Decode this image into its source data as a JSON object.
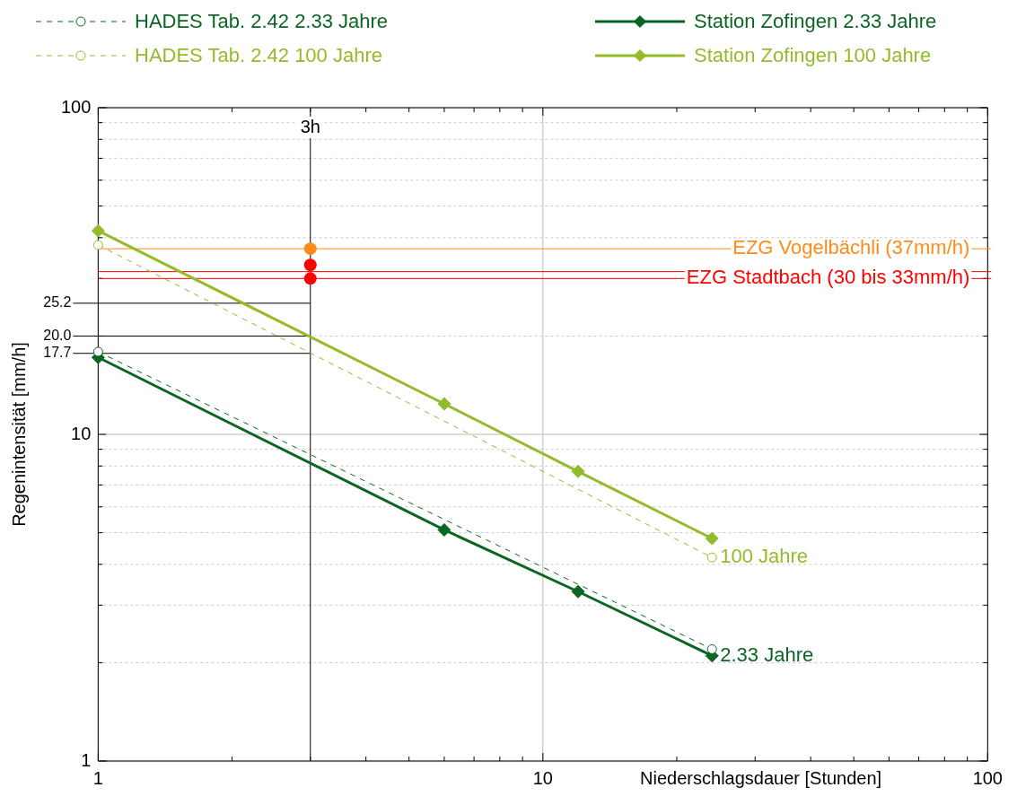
{
  "chart_data": {
    "type": "line",
    "xlabel": "Niederschlagsdauer [Stunden]",
    "ylabel": "Regenintensität [mm/h]",
    "log": "xy",
    "grid": true,
    "legend": "top",
    "xlim": [
      1,
      100
    ],
    "xticks": [
      1,
      {
        "value": 2,
        "label": null
      },
      {
        "value": 3,
        "label": null
      },
      {
        "value": 4,
        "label": null
      },
      {
        "value": 5,
        "label": null
      },
      {
        "value": 6,
        "label": null
      },
      {
        "value": 7,
        "label": null
      },
      {
        "value": 8,
        "label": null
      },
      {
        "value": 9,
        "label": null
      },
      10,
      {
        "value": 20,
        "label": null
      },
      {
        "value": 30,
        "label": null
      },
      {
        "value": 40,
        "label": null
      },
      {
        "value": 50,
        "label": null
      },
      {
        "value": 60,
        "label": null
      },
      {
        "value": 70,
        "label": null
      },
      {
        "value": 80,
        "label": null
      },
      {
        "value": 90,
        "label": null
      },
      100
    ],
    "ylim": [
      1,
      100
    ],
    "yticks": [
      1,
      {
        "value": 2,
        "label": null
      },
      {
        "value": 3,
        "label": null
      },
      {
        "value": 4,
        "label": null
      },
      {
        "value": 5,
        "label": null
      },
      {
        "value": 6,
        "label": null
      },
      {
        "value": 7,
        "label": null
      },
      {
        "value": 8,
        "label": null
      },
      {
        "value": 9,
        "label": null
      },
      10,
      {
        "value": 20,
        "label": null
      },
      {
        "value": 30,
        "label": null
      },
      {
        "value": 40,
        "label": null
      },
      {
        "value": 50,
        "label": null
      },
      {
        "value": 60,
        "label": null
      },
      {
        "value": 70,
        "label": null
      },
      {
        "value": 80,
        "label": null
      },
      {
        "value": 90,
        "label": null
      },
      100
    ],
    "series": [
      {
        "name": "HADES Tab. 2.42 2.33 Jahre",
        "type": "line",
        "color": "#0b6623",
        "x": [
          1,
          24
        ],
        "values": [
          17.9,
          2.2
        ],
        "marker": "circle",
        "line_style": "dashed"
      },
      {
        "name": "Station Zofingen 2.33 Jahre",
        "type": "line",
        "color": "#0b6623",
        "x": [
          1,
          6,
          12,
          24
        ],
        "values": [
          17.2,
          5.1,
          3.3,
          2.1
        ],
        "marker": "diamond",
        "line_style": "solid"
      },
      {
        "name": "HADES Tab. 2.42 100 Jahre",
        "type": "line",
        "color": "#93bb2b",
        "x": [
          1,
          24
        ],
        "values": [
          38,
          4.2
        ],
        "marker": "circle",
        "line_style": "dashed"
      },
      {
        "name": "Station Zofingen 100 Jahre",
        "type": "line",
        "color": "#93bb2b",
        "x": [
          1,
          6,
          12,
          24
        ],
        "values": [
          42,
          12.4,
          7.7,
          4.8
        ],
        "marker": "diamond",
        "line_style": "solid"
      },
      {
        "type": "scatter",
        "color": "#ff8c1a",
        "x": [
          3
        ],
        "values": [
          37
        ],
        "marker": "circle"
      },
      {
        "type": "scatter",
        "color": "#ff0000",
        "x": [
          3,
          3
        ],
        "values": [
          30,
          33
        ],
        "marker": "circle"
      }
    ],
    "ref_lines": [
      {
        "axis": "x",
        "value": 3,
        "label": "3h",
        "color": "#000000"
      },
      {
        "axis": "y",
        "value": 37,
        "label": "EZG Vogelbächli (37mm/h)",
        "color": "#ff8c1a"
      },
      {
        "axis": "y",
        "value": 31.5,
        "color": "#ff0000"
      },
      {
        "axis": "y",
        "value": 30,
        "label": "EZG Stadtbach (30 bis 33mm/h)",
        "color": "#ff0000"
      },
      {
        "axis": "y",
        "value": 25.2,
        "label": "25.2"
      },
      {
        "axis": "y",
        "value": 20.0,
        "label": "20.0"
      },
      {
        "axis": "y",
        "value": 17.7,
        "label": "17.7"
      }
    ],
    "annotations": [
      {
        "text": "100 Jahre",
        "x": 24,
        "y": 4.2
      },
      {
        "text": "2.33 Jahre",
        "x": 24,
        "y": 2.1
      }
    ]
  }
}
